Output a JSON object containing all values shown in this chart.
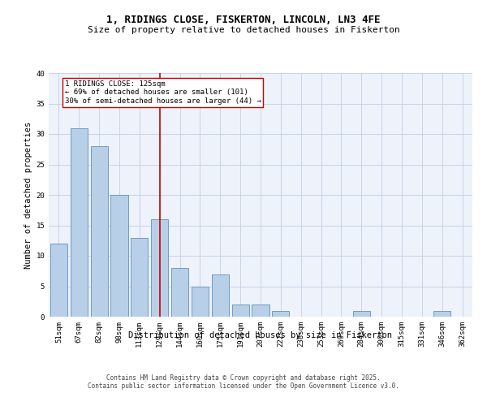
{
  "title": "1, RIDINGS CLOSE, FISKERTON, LINCOLN, LN3 4FE",
  "subtitle": "Size of property relative to detached houses in Fiskerton",
  "xlabel": "Distribution of detached houses by size in Fiskerton",
  "ylabel": "Number of detached properties",
  "categories": [
    "51sqm",
    "67sqm",
    "82sqm",
    "98sqm",
    "113sqm",
    "129sqm",
    "144sqm",
    "160sqm",
    "175sqm",
    "191sqm",
    "207sqm",
    "222sqm",
    "238sqm",
    "253sqm",
    "269sqm",
    "284sqm",
    "300sqm",
    "315sqm",
    "331sqm",
    "346sqm",
    "362sqm"
  ],
  "values": [
    12,
    31,
    28,
    20,
    13,
    16,
    8,
    5,
    7,
    2,
    2,
    1,
    0,
    0,
    0,
    1,
    0,
    0,
    0,
    1,
    0
  ],
  "bar_color": "#b8cfe8",
  "bar_edge_color": "#6090c0",
  "vline_x_index": 5,
  "vline_label": "1 RIDINGS CLOSE: 125sqm",
  "annotation_line1": "← 69% of detached houses are smaller (101)",
  "annotation_line2": "30% of semi-detached houses are larger (44) →",
  "vline_color": "#cc0000",
  "box_edge_color": "#cc0000",
  "grid_color": "#c8d4e8",
  "background_color": "#eef2fa",
  "footer_line1": "Contains HM Land Registry data © Crown copyright and database right 2025.",
  "footer_line2": "Contains public sector information licensed under the Open Government Licence v3.0.",
  "ylim": [
    0,
    40
  ],
  "title_fontsize": 9,
  "subtitle_fontsize": 8,
  "tick_fontsize": 6.5,
  "ylabel_fontsize": 7.5,
  "xlabel_fontsize": 7.5,
  "annotation_fontsize": 6.5,
  "footer_fontsize": 5.5
}
